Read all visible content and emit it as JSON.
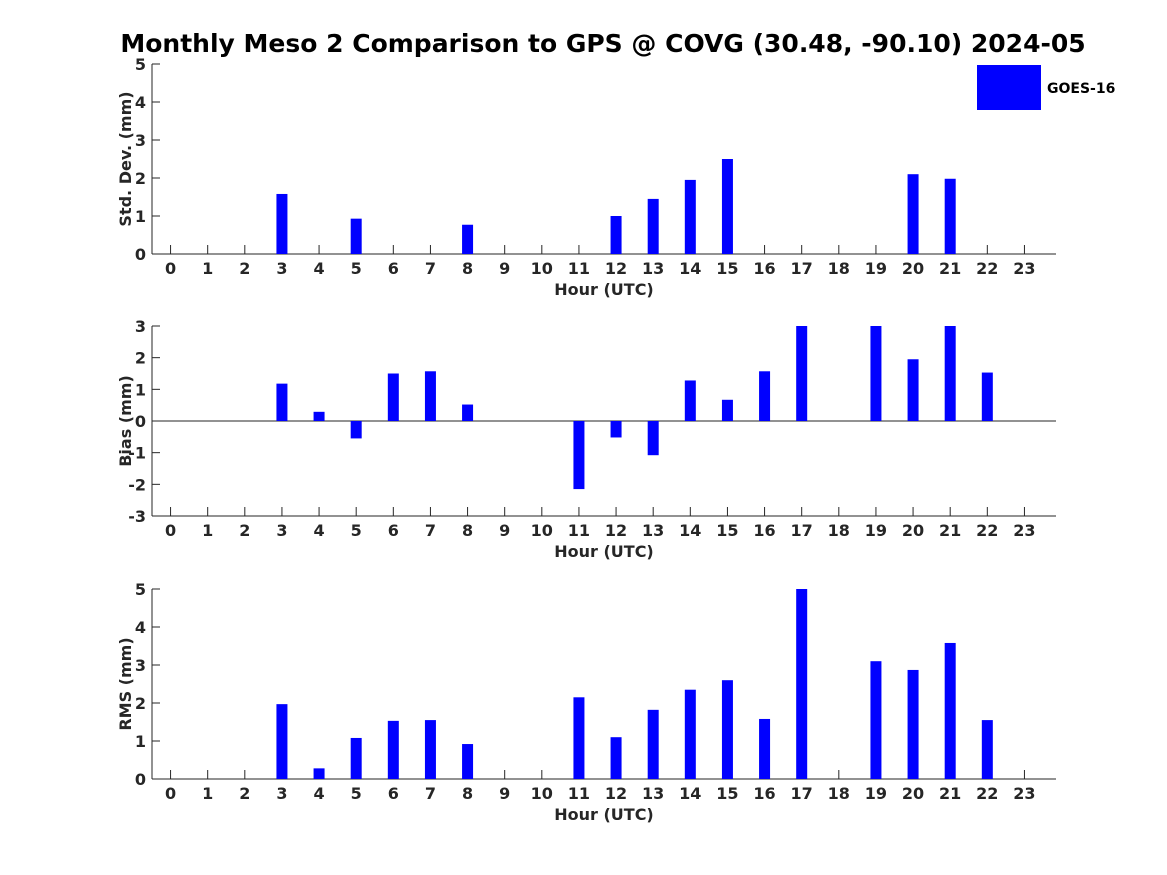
{
  "title": "Monthly Meso 2 Comparison to GPS @ COVG (30.48, -90.10) 2024-05",
  "legend": {
    "label": "GOES-16",
    "color": "#0000ff"
  },
  "chart_data": [
    {
      "id": "std",
      "type": "bar",
      "title": "",
      "xlabel": "Hour (UTC)",
      "ylabel": "Std. Dev. (mm)",
      "categories": [
        "0",
        "1",
        "2",
        "3",
        "4",
        "5",
        "6",
        "7",
        "8",
        "9",
        "10",
        "11",
        "12",
        "13",
        "14",
        "15",
        "16",
        "17",
        "18",
        "19",
        "20",
        "21",
        "22",
        "23"
      ],
      "values": [
        null,
        null,
        null,
        1.58,
        null,
        0.93,
        null,
        null,
        0.77,
        null,
        null,
        null,
        1.0,
        1.45,
        1.95,
        2.5,
        null,
        null,
        null,
        null,
        2.1,
        1.98,
        null,
        null
      ],
      "ylim": [
        0,
        5
      ],
      "yticks": [
        0,
        1,
        2,
        3,
        4,
        5
      ],
      "yticklabels": [
        "0",
        "1",
        "2",
        "3",
        "4",
        "5"
      ],
      "series_name": "GOES-16",
      "color": "#0000ff"
    },
    {
      "id": "bias",
      "type": "bar",
      "title": "",
      "xlabel": "Hour (UTC)",
      "ylabel": "Bias (mm)",
      "categories": [
        "0",
        "1",
        "2",
        "3",
        "4",
        "5",
        "6",
        "7",
        "8",
        "9",
        "10",
        "11",
        "12",
        "13",
        "14",
        "15",
        "16",
        "17",
        "18",
        "19",
        "20",
        "21",
        "22",
        "23"
      ],
      "values": [
        null,
        null,
        null,
        1.18,
        0.29,
        -0.55,
        1.5,
        1.57,
        0.52,
        null,
        null,
        -2.15,
        -0.52,
        -1.08,
        1.28,
        0.67,
        1.57,
        3.0,
        null,
        3.0,
        1.95,
        3.0,
        1.53,
        null
      ],
      "ylim": [
        -3,
        3
      ],
      "yticks": [
        -3,
        -2,
        -1,
        0,
        1,
        2,
        3
      ],
      "yticklabels": [
        "-3",
        "-2",
        "-1",
        "0",
        "1",
        "2",
        "3"
      ],
      "series_name": "GOES-16",
      "color": "#0000ff"
    },
    {
      "id": "rms",
      "type": "bar",
      "title": "",
      "xlabel": "Hour (UTC)",
      "ylabel": "RMS (mm)",
      "categories": [
        "0",
        "1",
        "2",
        "3",
        "4",
        "5",
        "6",
        "7",
        "8",
        "9",
        "10",
        "11",
        "12",
        "13",
        "14",
        "15",
        "16",
        "17",
        "18",
        "19",
        "20",
        "21",
        "22",
        "23"
      ],
      "values": [
        null,
        null,
        null,
        1.97,
        0.28,
        1.08,
        1.53,
        1.55,
        0.92,
        null,
        null,
        2.15,
        1.1,
        1.82,
        2.35,
        2.6,
        1.58,
        5.0,
        null,
        3.1,
        2.87,
        3.58,
        1.55,
        null
      ],
      "ylim": [
        0,
        5
      ],
      "yticks": [
        0,
        1,
        2,
        3,
        4,
        5
      ],
      "yticklabels": [
        "0",
        "1",
        "2",
        "3",
        "4",
        "5"
      ],
      "series_name": "GOES-16",
      "color": "#0000ff"
    }
  ]
}
